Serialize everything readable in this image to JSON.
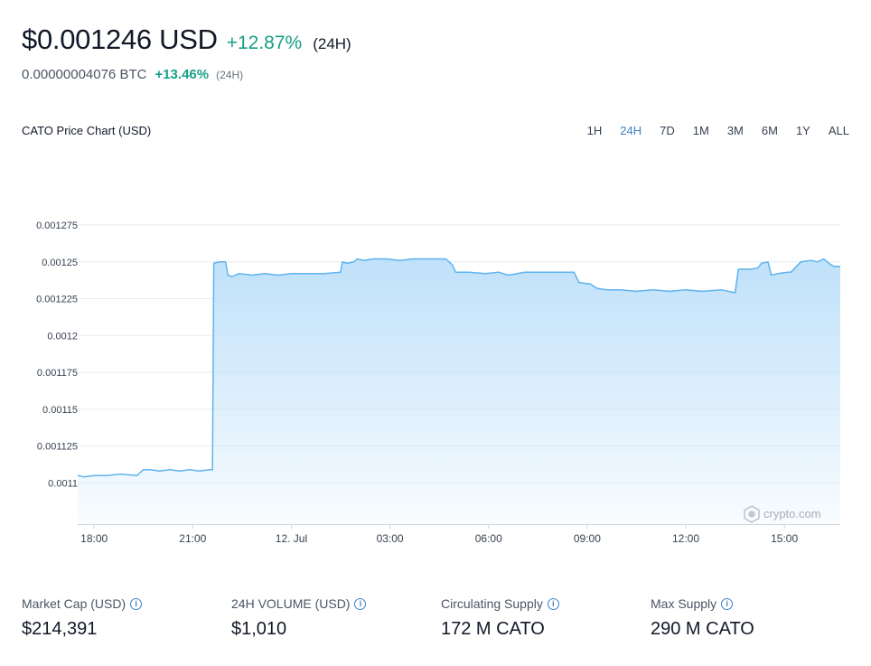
{
  "header": {
    "price": "$0.001246 USD",
    "change": "+12.87%",
    "period": "(24H)",
    "btc_value": "0.00000004076 BTC",
    "btc_change": "+13.46%",
    "btc_period": "(24H)"
  },
  "chart_header": {
    "title": "CATO Price Chart (USD)",
    "ranges": [
      "1H",
      "24H",
      "7D",
      "1M",
      "3M",
      "6M",
      "1Y",
      "ALL"
    ],
    "active_range": "24H"
  },
  "watermark": "crypto.com",
  "chart_data": {
    "type": "area",
    "title": "CATO Price Chart (USD)",
    "xlabel": "",
    "ylabel": "",
    "x_unit": "hour of day (17 Jul 11 – 12 Jul)",
    "x_ticks": [
      {
        "x": 18,
        "label": "18:00"
      },
      {
        "x": 21,
        "label": "21:00"
      },
      {
        "x": 24,
        "label": "12. Jul"
      },
      {
        "x": 27,
        "label": "03:00"
      },
      {
        "x": 30,
        "label": "06:00"
      },
      {
        "x": 33,
        "label": "09:00"
      },
      {
        "x": 36,
        "label": "12:00"
      },
      {
        "x": 39,
        "label": "15:00"
      }
    ],
    "y_ticks": [
      {
        "v": 0.0011,
        "label": "0.0011"
      },
      {
        "v": 0.001125,
        "label": "0.001125"
      },
      {
        "v": 0.00115,
        "label": "0.00115"
      },
      {
        "v": 0.001175,
        "label": "0.001175"
      },
      {
        "v": 0.0012,
        "label": "0.0012"
      },
      {
        "v": 0.001225,
        "label": "0.001225"
      },
      {
        "v": 0.00125,
        "label": "0.00125"
      },
      {
        "v": 0.001275,
        "label": "0.001275"
      }
    ],
    "xlim": [
      17.5,
      40.7
    ],
    "ylim": [
      0.001072,
      0.001302
    ],
    "grid": true,
    "color": "#5fb3ec",
    "fill": "#cfe8fb",
    "series": [
      {
        "x": [
          17.5,
          17.7,
          18.0,
          18.4,
          18.8,
          19.3,
          19.5,
          19.7,
          20.0,
          20.3,
          20.6,
          20.9,
          21.2,
          21.5,
          21.6,
          21.64,
          21.8,
          22.0,
          22.07,
          22.2,
          22.4,
          22.8,
          23.2,
          23.6,
          24.0,
          24.5,
          25.0,
          25.5,
          25.55,
          25.7,
          25.9,
          26.0,
          26.2,
          26.5,
          26.9,
          27.3,
          27.7,
          28.2,
          28.7,
          28.9,
          29.0,
          29.4,
          29.9,
          30.3,
          30.6,
          31.1,
          31.6,
          32.1,
          32.6,
          32.75,
          33.1,
          33.3,
          33.6,
          34.0,
          34.5,
          35.0,
          35.5,
          36.0,
          36.5,
          37.1,
          37.5,
          37.6,
          38.0,
          38.2,
          38.3,
          38.5,
          38.6,
          38.8,
          39.1,
          39.2,
          39.5,
          39.8,
          40.0,
          40.2,
          40.35,
          40.5,
          40.7
        ],
        "y": [
          0.001105,
          0.001104,
          0.001105,
          0.001105,
          0.001106,
          0.001105,
          0.001109,
          0.001109,
          0.001108,
          0.001109,
          0.001108,
          0.001109,
          0.001108,
          0.001109,
          0.001109,
          0.001249,
          0.00125,
          0.00125,
          0.001241,
          0.00124,
          0.001242,
          0.001241,
          0.001242,
          0.001241,
          0.001242,
          0.001242,
          0.001242,
          0.001243,
          0.00125,
          0.001249,
          0.00125,
          0.001252,
          0.001251,
          0.001252,
          0.001252,
          0.001251,
          0.001252,
          0.001252,
          0.001252,
          0.001248,
          0.001243,
          0.001243,
          0.001242,
          0.001243,
          0.001241,
          0.001243,
          0.001243,
          0.001243,
          0.001243,
          0.001236,
          0.001235,
          0.001232,
          0.001231,
          0.001231,
          0.00123,
          0.001231,
          0.00123,
          0.001231,
          0.00123,
          0.001231,
          0.001229,
          0.001245,
          0.001245,
          0.001246,
          0.001249,
          0.00125,
          0.001241,
          0.001242,
          0.001243,
          0.001243,
          0.00125,
          0.001251,
          0.00125,
          0.001252,
          0.001249,
          0.001247,
          0.001247
        ]
      }
    ]
  },
  "stats": [
    {
      "label": "Market Cap (USD)",
      "value": "$214,391"
    },
    {
      "label": "24H VOLUME (USD)",
      "value": "$1,010"
    },
    {
      "label": "Circulating Supply",
      "value": "172 M CATO"
    },
    {
      "label": "Max Supply",
      "value": "290 M CATO"
    }
  ]
}
